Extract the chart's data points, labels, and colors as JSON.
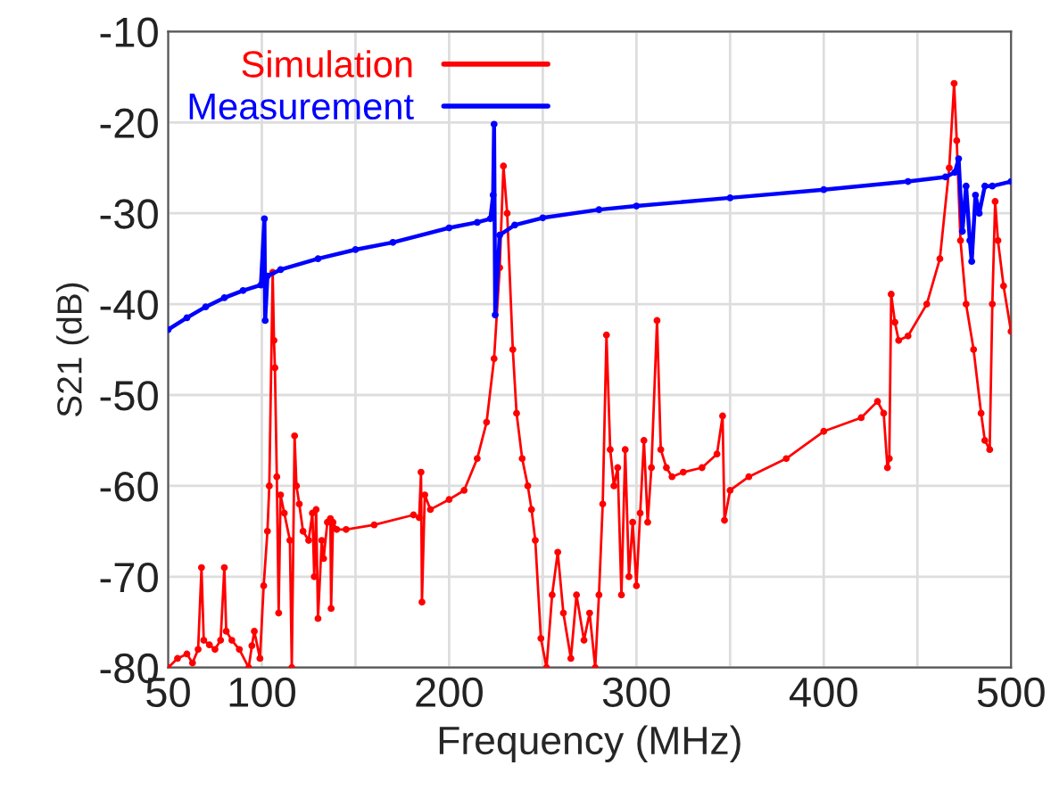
{
  "chart_data": {
    "type": "line",
    "xlabel": "Frequency (MHz)",
    "ylabel": "S21 (dB)",
    "xlim": [
      50,
      500
    ],
    "ylim": [
      -80,
      -10
    ],
    "xticks": [
      50,
      100,
      {
        "value": 150,
        "label": null
      },
      200,
      {
        "value": 250,
        "label": null
      },
      300,
      {
        "value": 350,
        "label": null
      },
      400,
      {
        "value": 450,
        "label": null
      },
      500
    ],
    "yticks": [
      -80,
      -70,
      -60,
      -50,
      -40,
      -30,
      -20,
      -10
    ],
    "grid": true,
    "legend": "top left",
    "marker": "circle",
    "line_style": "solid",
    "series": [
      {
        "name": "Simulation",
        "color": "#ff0000",
        "x": [
          50,
          55,
          60,
          63,
          66,
          67.8,
          69,
          72,
          75,
          78,
          80,
          81,
          84,
          88,
          93,
          94.7,
          96,
          99,
          101,
          103,
          104,
          105.8,
          106.5,
          107,
          108,
          109,
          110,
          112,
          115,
          116,
          117.5,
          118.5,
          120,
          122,
          125,
          127,
          128,
          129,
          130,
          132,
          133,
          135,
          136.6,
          137,
          138,
          140,
          145,
          160,
          181,
          184,
          185,
          185.5,
          187,
          190,
          200,
          208,
          215,
          220,
          224,
          227,
          229,
          231,
          234,
          236,
          239,
          242,
          244,
          246,
          249,
          252,
          255,
          258,
          261,
          265,
          268,
          272,
          275,
          278,
          280,
          282,
          284,
          286,
          288,
          290,
          292,
          294,
          296,
          298,
          300,
          302,
          304,
          306,
          308,
          311,
          313,
          316,
          319,
          325,
          335,
          343,
          346,
          347,
          350,
          360,
          380,
          400,
          420,
          428.7,
          432,
          434,
          435,
          436,
          438,
          440,
          445,
          455,
          462,
          467,
          469.6,
          471,
          473,
          476,
          480,
          484,
          486,
          488.6,
          490,
          491.5,
          493,
          496,
          500
        ],
        "values": [
          -80,
          -79,
          -78.5,
          -79.5,
          -78,
          -69,
          -77,
          -77.5,
          -78,
          -77,
          -69,
          -76,
          -77,
          -78,
          -80,
          -77.6,
          -76,
          -79,
          -71,
          -65,
          -60,
          -36.5,
          -44,
          -47,
          -59,
          -74,
          -61,
          -63,
          -66,
          -80,
          -54.5,
          -60,
          -62,
          -65,
          -66,
          -63,
          -70,
          -62.6,
          -74.6,
          -66,
          -68,
          -64,
          -63.6,
          -73.5,
          -64,
          -64.8,
          -64.8,
          -64.3,
          -63.2,
          -63.5,
          -58.5,
          -72.8,
          -61,
          -62.6,
          -61.5,
          -60.5,
          -57,
          -53,
          -46,
          -36,
          -24.8,
          -30,
          -45,
          -52,
          -57,
          -60,
          -62.6,
          -66,
          -76.8,
          -80,
          -72,
          -67.3,
          -74,
          -79,
          -72,
          -77,
          -74,
          -80,
          -72,
          -62,
          -43.4,
          -56,
          -60,
          -58,
          -72,
          -56,
          -70,
          -64,
          -71,
          -63,
          -55,
          -64,
          -58,
          -41.8,
          -56,
          -58,
          -59,
          -58.5,
          -58,
          -56.5,
          -52.3,
          -63.8,
          -60.5,
          -59,
          -57,
          -54,
          -52.5,
          -50.7,
          -52,
          -58,
          -57,
          -38.9,
          -42,
          -44,
          -43.5,
          -40,
          -35,
          -25,
          -15.7,
          -22,
          -33,
          -40,
          -45,
          -52,
          -55,
          -56,
          -40,
          -28.7,
          -33,
          -38,
          -43
        ]
      },
      {
        "name": "Measurement",
        "color": "#0000ff",
        "x": [
          50,
          60,
          70,
          80,
          90,
          99.5,
          101.4,
          101.8,
          103,
          110,
          130,
          150,
          170,
          200,
          215,
          222,
          223.5,
          224,
          224.6,
          227,
          235,
          250,
          280,
          300,
          350,
          400,
          445,
          465,
          470,
          472,
          474,
          476,
          478,
          479,
          481,
          483,
          486,
          490,
          500
        ],
        "values": [
          -42.8,
          -41.5,
          -40.3,
          -39.3,
          -38.5,
          -37.9,
          -30.6,
          -41.8,
          -36.9,
          -36.2,
          -35,
          -34,
          -33.2,
          -31.6,
          -31,
          -30.6,
          -28,
          -20.2,
          -41.2,
          -32.4,
          -31.3,
          -30.5,
          -29.6,
          -29.2,
          -28.3,
          -27.4,
          -26.5,
          -26,
          -25.5,
          -24,
          -32,
          -27,
          -33,
          -35.3,
          -28,
          -30,
          -27,
          -27,
          -26.5
        ]
      }
    ]
  }
}
